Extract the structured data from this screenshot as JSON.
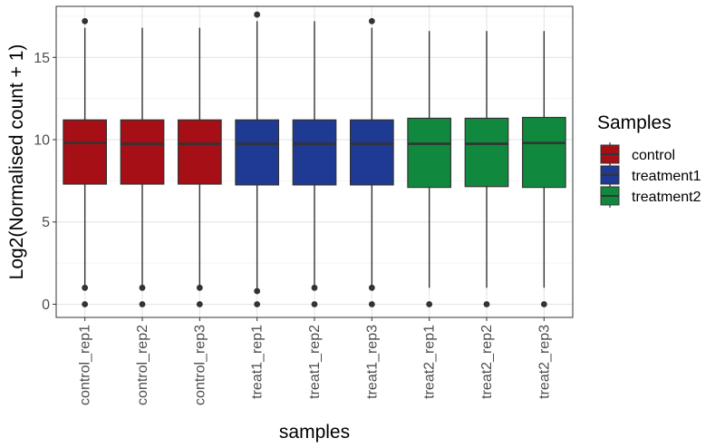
{
  "chart_data": {
    "type": "boxplot",
    "xlabel": "samples",
    "ylabel": "Log2(Normalised count + 1)",
    "ylim": [
      -0.8,
      18.1
    ],
    "yticks": [
      0,
      5,
      10,
      15
    ],
    "grid": true,
    "legend": {
      "title": "Samples",
      "position": "right",
      "entries": [
        {
          "label": "control",
          "color": "#A50F15"
        },
        {
          "label": "treatment1",
          "color": "#1F3A93"
        },
        {
          "label": "treatment2",
          "color": "#10893E"
        }
      ]
    },
    "categories": [
      "control_rep1",
      "control_rep2",
      "control_rep3",
      "treat1_rep1",
      "treat1_rep2",
      "treat1_rep3",
      "treat2_rep1",
      "treat2_rep2",
      "treat2_rep3"
    ],
    "boxes": [
      {
        "sample": "control_rep1",
        "group": "control",
        "q1": 7.3,
        "median": 9.8,
        "q3": 11.2,
        "whisker_low": 1.1,
        "whisker_high": 16.8,
        "outliers": [
          17.2,
          1.0,
          0.0
        ]
      },
      {
        "sample": "control_rep2",
        "group": "control",
        "q1": 7.3,
        "median": 9.75,
        "q3": 11.2,
        "whisker_low": 1.1,
        "whisker_high": 16.8,
        "outliers": [
          1.0,
          0.0
        ]
      },
      {
        "sample": "control_rep3",
        "group": "control",
        "q1": 7.3,
        "median": 9.75,
        "q3": 11.2,
        "whisker_low": 1.1,
        "whisker_high": 16.8,
        "outliers": [
          1.0,
          0.0
        ]
      },
      {
        "sample": "treat1_rep1",
        "group": "treatment1",
        "q1": 7.25,
        "median": 9.75,
        "q3": 11.2,
        "whisker_low": 0.9,
        "whisker_high": 17.2,
        "outliers": [
          17.6,
          0.8,
          0.0
        ]
      },
      {
        "sample": "treat1_rep2",
        "group": "treatment1",
        "q1": 7.25,
        "median": 9.75,
        "q3": 11.2,
        "whisker_low": 1.1,
        "whisker_high": 17.2,
        "outliers": [
          1.0,
          0.0
        ]
      },
      {
        "sample": "treat1_rep3",
        "group": "treatment1",
        "q1": 7.25,
        "median": 9.75,
        "q3": 11.2,
        "whisker_low": 1.1,
        "whisker_high": 16.8,
        "outliers": [
          17.2,
          1.0,
          0.0
        ]
      },
      {
        "sample": "treat2_rep1",
        "group": "treatment2",
        "q1": 7.1,
        "median": 9.75,
        "q3": 11.3,
        "whisker_low": 1.0,
        "whisker_high": 16.6,
        "outliers": [
          0.0
        ]
      },
      {
        "sample": "treat2_rep2",
        "group": "treatment2",
        "q1": 7.15,
        "median": 9.75,
        "q3": 11.3,
        "whisker_low": 1.0,
        "whisker_high": 16.6,
        "outliers": [
          0.0
        ]
      },
      {
        "sample": "treat2_rep3",
        "group": "treatment2",
        "q1": 7.1,
        "median": 9.8,
        "q3": 11.35,
        "whisker_low": 1.0,
        "whisker_high": 16.6,
        "outliers": [
          0.0
        ]
      }
    ]
  }
}
